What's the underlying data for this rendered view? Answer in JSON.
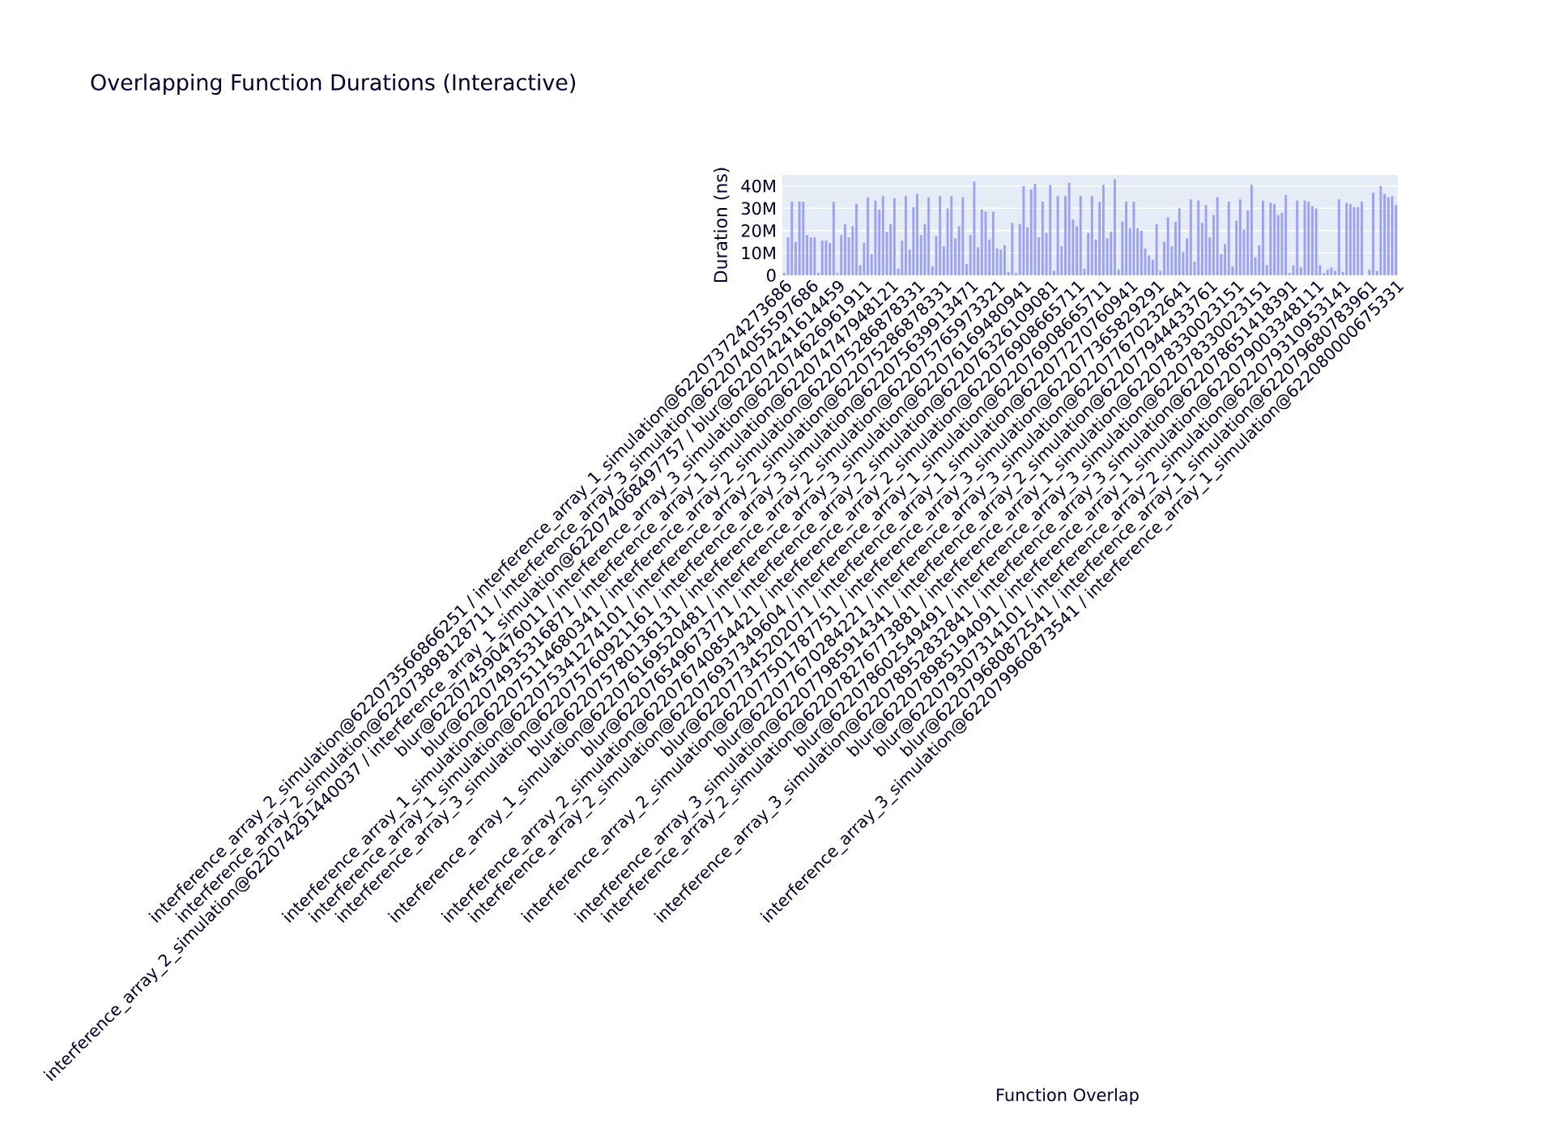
{
  "chart_data": {
    "type": "bar",
    "title": "Overlapping Function Durations (Interactive)",
    "xlabel": "Function Overlap",
    "ylabel": "Duration (ns)",
    "categories": [
      "interference_array_2_simulation@622073566866251 / interference_array_1_simulation@622073724273686",
      null,
      null,
      null,
      null,
      null,
      null,
      "interference_array_2_simulation@622073898128711 / interference_array_3_simulation@622074055597686",
      null,
      null,
      null,
      null,
      null,
      null,
      "interference_array_2_simulation@622074291440037 / interference_array_1_simulation@622074068497757 / blur@622074241614459",
      null,
      null,
      null,
      null,
      null,
      null,
      "blur@622074590476011 / interference_array_3_simulation@622074626961911",
      null,
      null,
      null,
      null,
      null,
      null,
      "blur@622074935316871 / interference_array_1_simulation@622074747948121",
      null,
      null,
      null,
      null,
      null,
      null,
      "interference_array_1_simulation@622075114680341 / interference_array_2_simulation@622075286878331",
      null,
      null,
      null,
      null,
      null,
      null,
      "interference_array_1_simulation@622075341274101 / interference_array_2_simulation@622075286878331",
      null,
      null,
      null,
      null,
      null,
      null,
      "interference_array_3_simulation@622075760921161 / interference_array_3_simulation@622075639913471",
      null,
      null,
      null,
      null,
      null,
      null,
      "blur@622075780136131 / interference_array_2_simulation@622075765973321",
      null,
      null,
      null,
      null,
      null,
      null,
      "interference_array_1_simulation@622076169520481 / interference_array_3_simulation@622076169480941",
      null,
      null,
      null,
      null,
      null,
      null,
      "blur@622076549673771 / interference_array_2_simulation@622076326109081",
      null,
      null,
      null,
      null,
      null,
      null,
      "interference_array_2_simulation@622076740854421 / interference_array_2_simulation@622076908665711",
      null,
      null,
      null,
      null,
      null,
      null,
      "interference_array_2_simulation@622076937349604 / interference_array_1_simulation@622076908665711",
      null,
      null,
      null,
      null,
      null,
      null,
      "blur@622077345202071 / interference_array_1_simulation@622077270760941",
      null,
      null,
      null,
      null,
      null,
      null,
      "interference_array_2_simulation@622077501787751 / interference_array_3_simulation@622077365829291",
      null,
      null,
      null,
      null,
      null,
      null,
      "blur@622077670284221 / interference_array_3_simulation@622077670232641",
      null,
      null,
      null,
      null,
      null,
      null,
      "interference_array_3_simulation@622077985914341 / interference_array_2_simulation@622077944433761",
      null,
      null,
      null,
      null,
      null,
      null,
      "interference_array_2_simulation@622078276773881 / interference_array_1_simulation@622078330023151",
      null,
      null,
      null,
      null,
      null,
      null,
      "blur@622078602549491 / interference_array_3_simulation@622078330023151",
      null,
      null,
      null,
      null,
      null,
      null,
      "interference_array_3_simulation@622078952832841 / interference_array_3_simulation@622078651418391",
      null,
      null,
      null,
      null,
      null,
      null,
      "blur@622078985194091 / interference_array_1_simulation@622079003348111",
      null,
      null,
      null,
      null,
      null,
      null,
      "blur@622079307314101 / interference_array_2_simulation@622079310953141",
      null,
      null,
      null,
      null,
      null,
      null,
      "blur@622079680872541 / interference_array_1_simulation@622079680783961",
      null,
      null,
      null,
      null,
      null,
      null,
      "interference_array_3_simulation@622079960873541 / interference_array_1_simulation@622080000675331"
    ],
    "values": [
      1000000,
      17000000,
      33000000,
      15000000,
      33000000,
      33000000,
      18000000,
      17000000,
      17000000,
      1000000,
      15500000,
      15500000,
      14500000,
      33000000,
      1000000,
      18000000,
      23000000,
      17000000,
      22000000,
      32000000,
      4500000,
      14500000,
      35000000,
      9500000,
      33500000,
      29500000,
      35500000,
      19500000,
      23000000,
      34500000,
      3000000,
      15500000,
      35500000,
      11500000,
      30500000,
      36500000,
      18000000,
      23000000,
      35000000,
      4000000,
      17500000,
      35500000,
      13000000,
      30000000,
      35500000,
      16500000,
      22000000,
      35000000,
      5000000,
      18000000,
      42000000,
      12500000,
      29500000,
      28500000,
      16000000,
      28500000,
      12000000,
      11500000,
      13500000,
      1500000,
      23500000,
      1000000,
      23000000,
      40000000,
      21500000,
      38500000,
      41000000,
      17000000,
      33000000,
      19000000,
      40500000,
      2000000,
      35500000,
      13000000,
      35500000,
      41500000,
      25000000,
      22000000,
      35500000,
      3000000,
      19000000,
      35500000,
      16000000,
      33000000,
      40500000,
      16500000,
      19500000,
      43000000,
      2500000,
      24000000,
      33000000,
      21000000,
      33000000,
      21000000,
      20000000,
      12000000,
      9000000,
      7000000,
      23000000,
      2000000,
      15000000,
      26000000,
      13000000,
      24000000,
      30000000,
      10500000,
      16500000,
      34000000,
      6000000,
      33500000,
      23500000,
      31500000,
      17000000,
      27000000,
      35000000,
      9500000,
      14000000,
      33000000,
      4000000,
      24500000,
      34000000,
      20500000,
      29000000,
      40500000,
      8000000,
      13500000,
      33500000,
      4500000,
      32500000,
      32000000,
      27000000,
      28000000,
      36000000,
      1000000,
      4500000,
      33500000,
      3500000,
      33500000,
      33000000,
      31000000,
      30000000,
      4500000,
      1000000,
      2500000,
      3500000,
      2000000,
      34000000,
      1500000,
      32500000,
      32000000,
      30500000,
      30500000,
      33000000,
      0,
      2500000,
      37000000,
      2000000,
      40000000,
      36500000,
      35000000,
      35500000,
      31500000
    ],
    "color": "#9ba1f9",
    "ylim": [
      0,
      45000000
    ],
    "yticks": [
      0,
      {
        "value": 10000000,
        "label": "10M"
      },
      {
        "value": 20000000,
        "label": "20M"
      },
      {
        "value": 30000000,
        "label": "30M"
      },
      {
        "value": 40000000,
        "label": "40M"
      }
    ],
    "grid": "y"
  }
}
